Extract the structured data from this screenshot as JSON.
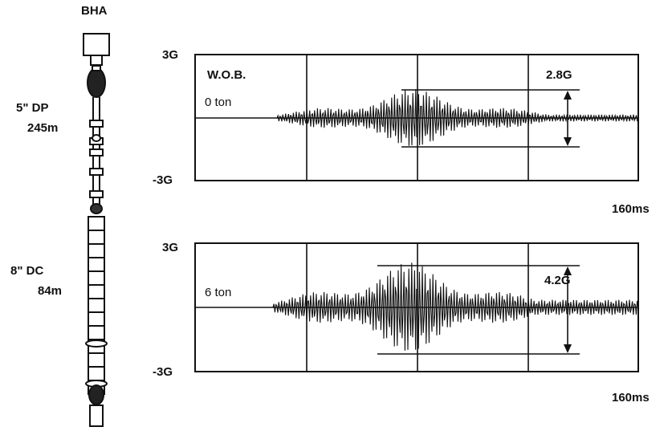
{
  "bha": {
    "title": "BHA",
    "dp_label": "5\" DP",
    "dp_length": "245m",
    "dc_label": "8\" DC",
    "dc_length": "84m"
  },
  "panels": [
    {
      "y_top": "3G",
      "y_bottom": "-3G",
      "header": "W.O.B.",
      "wob": "0 ton",
      "amplitude": "2.8G",
      "time_scale": "160ms"
    },
    {
      "y_top": "3G",
      "y_bottom": "-3G",
      "header": "",
      "wob": "6 ton",
      "amplitude": "4.2G",
      "time_scale": "160ms"
    }
  ],
  "colors": {
    "ink": "#111111",
    "background": "#ffffff"
  }
}
